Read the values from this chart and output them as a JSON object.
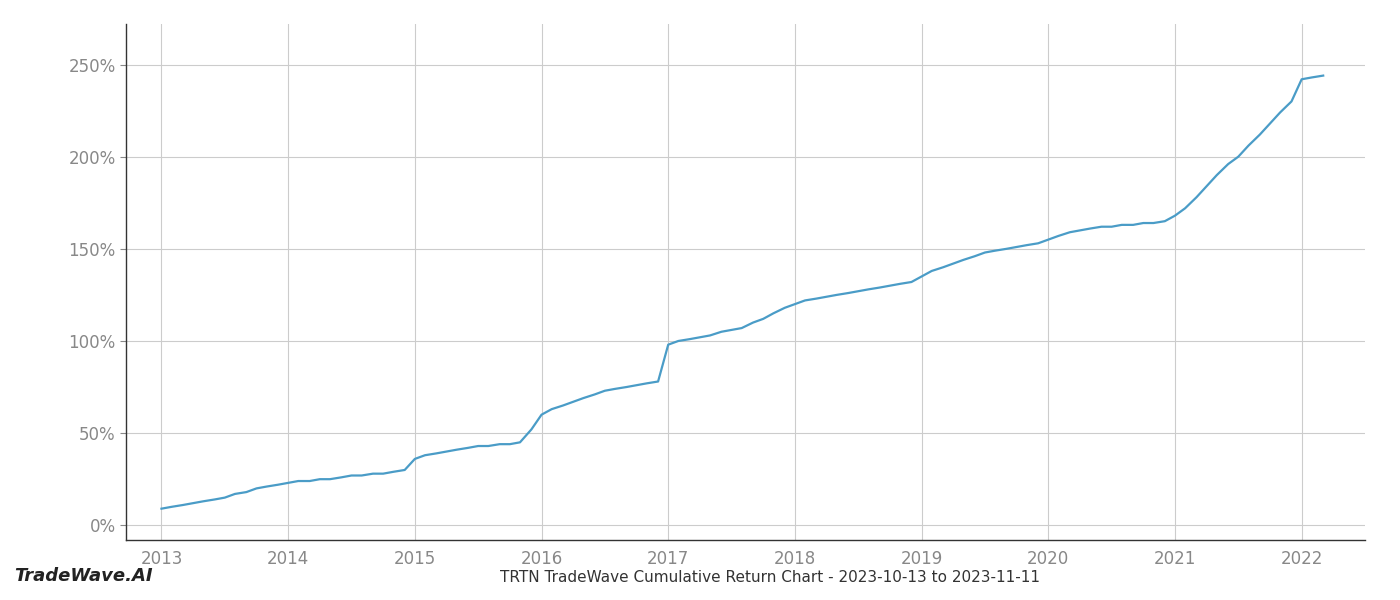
{
  "title": "TRTN TradeWave Cumulative Return Chart - 2023-10-13 to 2023-11-11",
  "watermark": "TradeWave.AI",
  "line_color": "#4a9cc7",
  "background_color": "#ffffff",
  "grid_color": "#cccccc",
  "x_values": [
    2013.0,
    2013.08,
    2013.17,
    2013.25,
    2013.33,
    2013.42,
    2013.5,
    2013.58,
    2013.67,
    2013.75,
    2013.83,
    2013.92,
    2014.0,
    2014.08,
    2014.17,
    2014.25,
    2014.33,
    2014.42,
    2014.5,
    2014.58,
    2014.67,
    2014.75,
    2014.83,
    2014.92,
    2015.0,
    2015.08,
    2015.17,
    2015.25,
    2015.33,
    2015.42,
    2015.5,
    2015.58,
    2015.67,
    2015.75,
    2015.83,
    2015.92,
    2016.0,
    2016.08,
    2016.17,
    2016.25,
    2016.33,
    2016.42,
    2016.5,
    2016.58,
    2016.67,
    2016.75,
    2016.83,
    2016.92,
    2017.0,
    2017.08,
    2017.17,
    2017.25,
    2017.33,
    2017.42,
    2017.5,
    2017.58,
    2017.67,
    2017.75,
    2017.83,
    2017.92,
    2018.0,
    2018.08,
    2018.17,
    2018.25,
    2018.33,
    2018.42,
    2018.5,
    2018.58,
    2018.67,
    2018.75,
    2018.83,
    2018.92,
    2019.0,
    2019.08,
    2019.17,
    2019.25,
    2019.33,
    2019.42,
    2019.5,
    2019.58,
    2019.67,
    2019.75,
    2019.83,
    2019.92,
    2020.0,
    2020.08,
    2020.17,
    2020.25,
    2020.33,
    2020.42,
    2020.5,
    2020.58,
    2020.67,
    2020.75,
    2020.83,
    2020.92,
    2021.0,
    2021.08,
    2021.17,
    2021.25,
    2021.33,
    2021.42,
    2021.5,
    2021.58,
    2021.67,
    2021.75,
    2021.83,
    2021.92,
    2022.0,
    2022.08,
    2022.17
  ],
  "y_values": [
    9,
    10,
    11,
    12,
    13,
    14,
    15,
    17,
    18,
    20,
    21,
    22,
    23,
    24,
    24,
    25,
    25,
    26,
    27,
    27,
    28,
    28,
    29,
    30,
    36,
    38,
    39,
    40,
    41,
    42,
    43,
    43,
    44,
    44,
    45,
    52,
    60,
    63,
    65,
    67,
    69,
    71,
    73,
    74,
    75,
    76,
    77,
    78,
    98,
    100,
    101,
    102,
    103,
    105,
    106,
    107,
    110,
    112,
    115,
    118,
    120,
    122,
    123,
    124,
    125,
    126,
    127,
    128,
    129,
    130,
    131,
    132,
    135,
    138,
    140,
    142,
    144,
    146,
    148,
    149,
    150,
    151,
    152,
    153,
    155,
    157,
    159,
    160,
    161,
    162,
    162,
    163,
    163,
    164,
    164,
    165,
    168,
    172,
    178,
    184,
    190,
    196,
    200,
    206,
    212,
    218,
    224,
    230,
    242,
    243,
    244
  ],
  "xlim": [
    2012.72,
    2022.5
  ],
  "ylim": [
    -8,
    272
  ],
  "yticks": [
    0,
    50,
    100,
    150,
    200,
    250
  ],
  "xticks": [
    2013,
    2014,
    2015,
    2016,
    2017,
    2018,
    2019,
    2020,
    2021,
    2022
  ],
  "line_width": 1.6,
  "title_fontsize": 11,
  "tick_fontsize": 12,
  "watermark_fontsize": 13
}
